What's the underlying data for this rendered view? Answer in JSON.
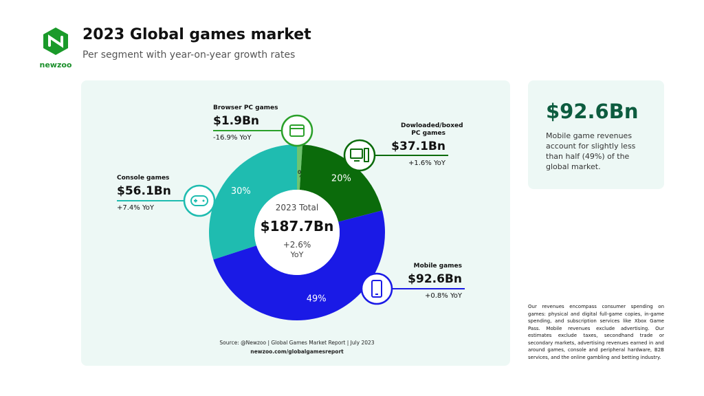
{
  "header": {
    "title": "2023 Global games market",
    "subtitle": "Per segment with year-on-year growth rates",
    "logo": "newzoo"
  },
  "chart_data": {
    "type": "pie",
    "categories": [
      "Browser PC games",
      "Dowloaded/boxed PC games",
      "Mobile games",
      "Console games"
    ],
    "values": [
      1,
      20,
      49,
      30
    ],
    "value_labels": [
      "1%",
      "20%",
      "49%",
      "30%"
    ],
    "colors": [
      "#6fc46f",
      "#0b6b0b",
      "#1a1ae6",
      "#1fbcb0"
    ],
    "revenues": [
      "$1.9Bn",
      "$37.1Bn",
      "$92.6Bn",
      "$56.1Bn"
    ],
    "growth": [
      "-16.9% YoY",
      "+1.6% YoY",
      "+0.8% YoY",
      "+7.4% YoY"
    ],
    "center_label": "2023 Total",
    "center_total": "$187.7Bn",
    "center_growth": "+2.6%",
    "center_growth_unit": "YoY",
    "source": "Source: @Newzoo | Global Games Market Report | July 2023",
    "source_url": "newzoo.com/globalgamesreport"
  },
  "highlight": {
    "value": "$92.6Bn",
    "text": "Mobile game revenues account for slightly less than half (49%) of the global market."
  },
  "footnote": "Our revenues encompass consumer spending on games: physical and digital full-game copies, in-game spending, and subscription services like Xbox Game Pass. Mobile revenues exclude advertising. Our estimates exclude taxes, secondhand trade or secondary markets, advertising revenues earned in and around games, console and peripheral hardware, B2B services, and the online gambling and betting industry."
}
